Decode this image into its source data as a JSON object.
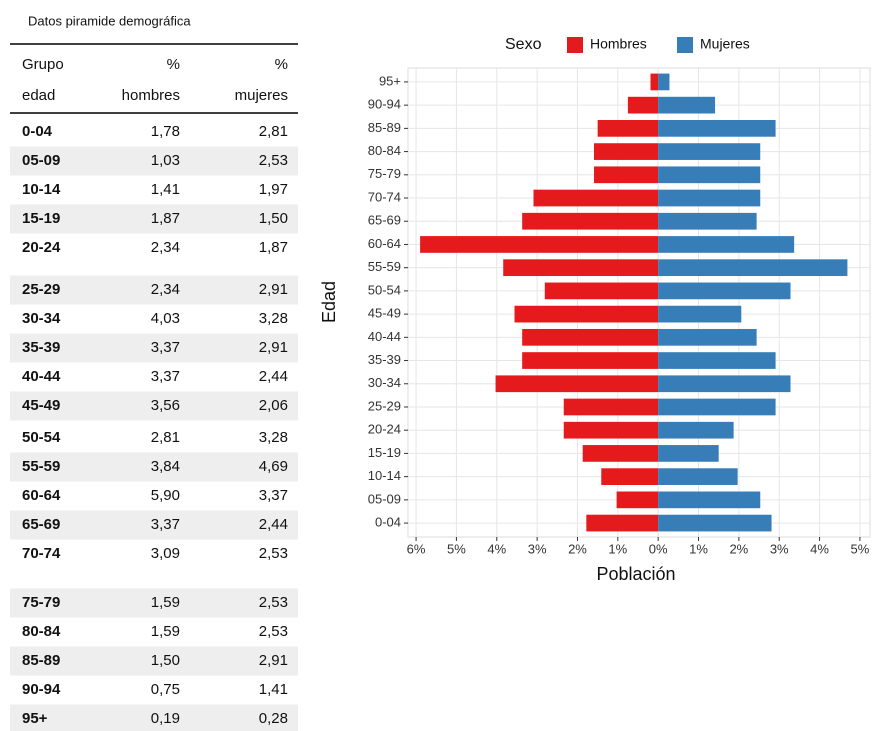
{
  "table": {
    "title": "Datos piramide demográfica",
    "header": [
      [
        "Grupo",
        "edad"
      ],
      [
        "%",
        "hombres"
      ],
      [
        "%",
        "mujeres"
      ]
    ],
    "rows": [
      [
        "0-04",
        "1,78",
        "2,81"
      ],
      [
        "05-09",
        "1,03",
        "2,53"
      ],
      [
        "10-14",
        "1,41",
        "1,97"
      ],
      [
        "15-19",
        "1,87",
        "1,50"
      ],
      [
        "20-24",
        "2,34",
        "1,87"
      ],
      [
        "25-29",
        "2,34",
        "2,91"
      ],
      [
        "30-34",
        "4,03",
        "3,28"
      ],
      [
        "35-39",
        "3,37",
        "2,91"
      ],
      [
        "40-44",
        "3,37",
        "2,44"
      ],
      [
        "45-49",
        "3,56",
        "2,06"
      ],
      [
        "50-54",
        "2,81",
        "3,28"
      ],
      [
        "55-59",
        "3,84",
        "4,69"
      ],
      [
        "60-64",
        "5,90",
        "3,37"
      ],
      [
        "65-69",
        "3,37",
        "2,44"
      ],
      [
        "70-74",
        "3,09",
        "2,53"
      ],
      [
        "75-79",
        "1,59",
        "2,53"
      ],
      [
        "80-84",
        "1,59",
        "2,53"
      ],
      [
        "85-89",
        "1,50",
        "2,91"
      ],
      [
        "90-94",
        "0,75",
        "1,41"
      ],
      [
        "95+",
        "0,19",
        "0,28"
      ]
    ]
  },
  "chart_data": {
    "type": "bar",
    "orientation": "horizontal",
    "x_label": "Población",
    "y_label": "Edad",
    "legend_title": "Sexo",
    "legend": "top",
    "categories": [
      "0-04",
      "05-09",
      "10-14",
      "15-19",
      "20-24",
      "25-29",
      "30-34",
      "35-39",
      "40-44",
      "45-49",
      "50-54",
      "55-59",
      "60-64",
      "65-69",
      "70-74",
      "75-79",
      "80-84",
      "85-89",
      "90-94",
      "95+"
    ],
    "series": [
      {
        "name": "Hombres",
        "color": "#e41a1c",
        "values": [
          -1.78,
          -1.03,
          -1.41,
          -1.87,
          -2.34,
          -2.34,
          -4.03,
          -3.37,
          -3.37,
          -3.56,
          -2.81,
          -3.84,
          -5.9,
          -3.37,
          -3.09,
          -1.59,
          -1.59,
          -1.5,
          -0.75,
          -0.19
        ]
      },
      {
        "name": "Mujeres",
        "color": "#377eb8",
        "values": [
          2.81,
          2.53,
          1.97,
          1.5,
          1.87,
          2.91,
          3.28,
          2.91,
          2.44,
          2.06,
          3.28,
          4.69,
          3.37,
          2.44,
          2.53,
          2.53,
          2.53,
          2.91,
          1.41,
          0.28
        ]
      }
    ],
    "xlim": [
      -6.2,
      5.25
    ],
    "xticks": [
      {
        "value": -6,
        "label": "6%"
      },
      {
        "value": -5,
        "label": "5%"
      },
      {
        "value": -4,
        "label": "4%"
      },
      {
        "value": -3,
        "label": "3%"
      },
      {
        "value": -2,
        "label": "2%"
      },
      {
        "value": -1,
        "label": "1%"
      },
      {
        "value": 0,
        "label": "0%"
      },
      {
        "value": 1,
        "label": "1%"
      },
      {
        "value": 2,
        "label": "2%"
      },
      {
        "value": 3,
        "label": "3%"
      },
      {
        "value": 4,
        "label": "4%"
      },
      {
        "value": 5,
        "label": "5%"
      }
    ],
    "grid": true
  }
}
